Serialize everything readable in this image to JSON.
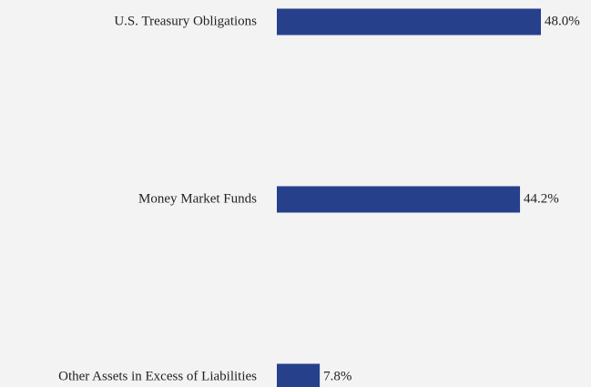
{
  "chart_data": {
    "type": "bar",
    "orientation": "horizontal",
    "categories": [
      "U.S. Treasury Obligations",
      "Money Market Funds",
      "Other Assets in Excess of Liabilities"
    ],
    "values": [
      48.0,
      44.2,
      7.8
    ],
    "value_labels": [
      "48.0%",
      "44.2%",
      "7.8%"
    ],
    "color": "#27408b"
  }
}
